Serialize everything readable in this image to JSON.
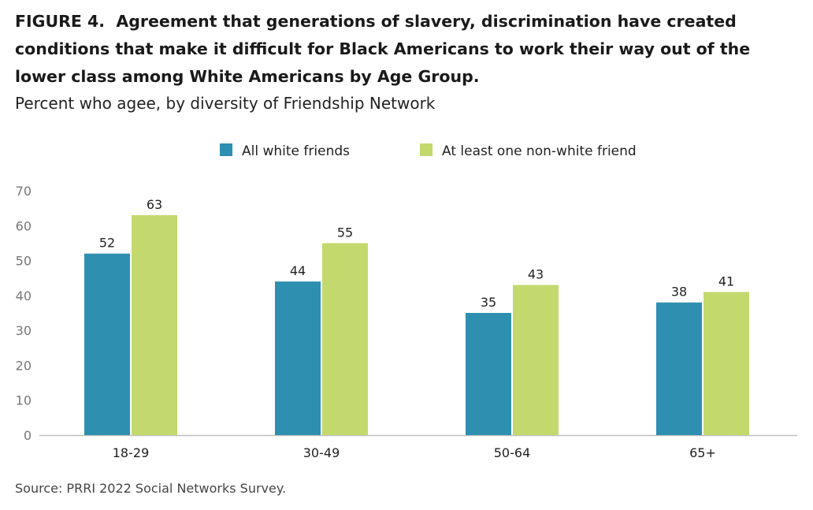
{
  "figure_label": "FIGURE 4.",
  "title": "Agreement that generations of slavery, discrimination have created conditions that make it difficult for Black Americans to work their way out of the lower class among White Americans by Age Group.",
  "subtitle": "Percent who agee, by diversity of Friendship Network",
  "source": "Source: PRRI 2022 Social Networks Survey.",
  "chart_data": {
    "type": "bar",
    "categories": [
      "18-29",
      "30-49",
      "50-64",
      "65+"
    ],
    "series": [
      {
        "name": "All white friends",
        "color": "#2e8fb0",
        "values": [
          52,
          44,
          35,
          38
        ]
      },
      {
        "name": "At least one non-white friend",
        "color": "#c3d96e",
        "values": [
          63,
          55,
          43,
          41
        ]
      }
    ],
    "yticks": [
      0,
      10,
      20,
      30,
      40,
      50,
      60,
      70
    ],
    "ylim": [
      0,
      70
    ],
    "grid": false,
    "legend": "top-center"
  }
}
